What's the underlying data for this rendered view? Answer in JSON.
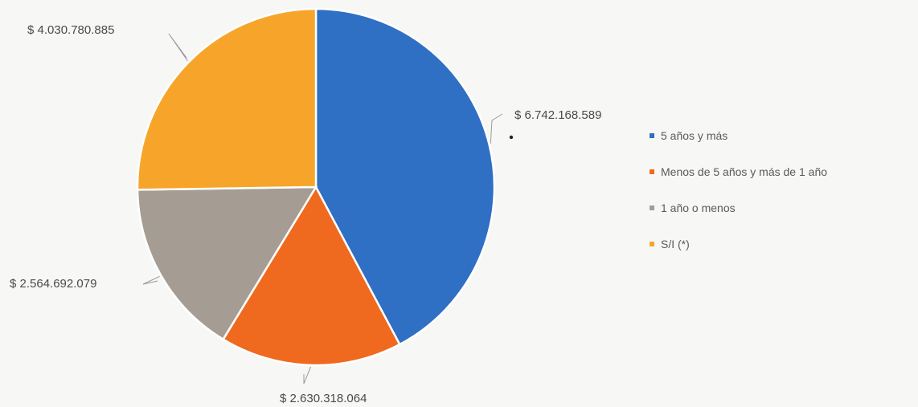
{
  "chart_data": {
    "type": "pie",
    "start_angle_deg": 0,
    "direction": "clockwise",
    "slices": [
      {
        "label": "5 años y más",
        "value": 6742168589,
        "value_label": "$ 6.742.168.589",
        "color": "#2f6fc4"
      },
      {
        "label": "Menos de 5 años y más de 1 año",
        "value": 2630318064,
        "value_label": "$ 2.630.318.064",
        "color": "#ef6a1e"
      },
      {
        "label": "1 año o menos",
        "value": 2564692079,
        "value_label": "$ 2.564.692.079",
        "color": "#a59d94"
      },
      {
        "label": "S/I (*)",
        "value": 4030780885,
        "value_label": "$ 4.030.780.885",
        "color": "#f7a52a"
      }
    ],
    "legend_placement": "right"
  }
}
